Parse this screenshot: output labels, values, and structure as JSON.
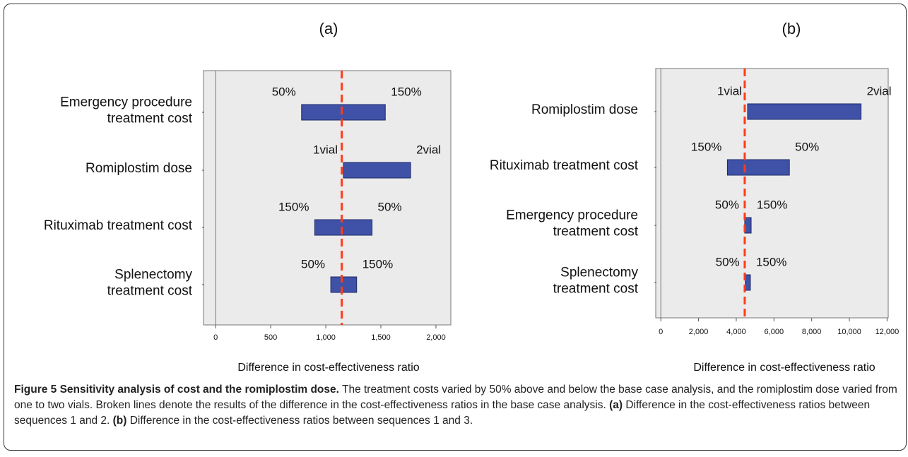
{
  "chart_data": [
    {
      "type": "tornado",
      "title": "(a)",
      "x_label": "Difference in cost-effectiveness ratio",
      "categories": [
        "Emergency procedure\ntreatment cost",
        "Romiplostim dose",
        "Rituximab treatment cost",
        "Splenectomy\ntreatment cost"
      ],
      "values": [
        [
          780,
          1540
        ],
        [
          1160,
          1770
        ],
        [
          900,
          1420
        ],
        [
          1045,
          1280
        ]
      ],
      "bar_labels": [
        [
          "50%",
          "150%"
        ],
        [
          "1vial",
          "2vial"
        ],
        [
          "150%",
          "50%"
        ],
        [
          "50%",
          "150%"
        ]
      ],
      "color": "#3f52a8",
      "reference_value": 1145,
      "reference_color": "#ff3b1a",
      "xlim": [
        -110,
        2135
      ],
      "xticks": [
        0,
        500,
        {
          "value": 1000,
          "label": "1,000"
        },
        {
          "value": 1500,
          "label": "1,500"
        },
        {
          "value": 2000,
          "label": "2,000"
        }
      ]
    },
    {
      "type": "tornado",
      "title": "(b)",
      "x_label": "Difference in cost-effectiveness ratio",
      "categories": [
        "Romiplostim dose",
        "Rituximab treatment cost",
        "Emergency procedure\ntreatment cost",
        "Splenectomy\ntreatment cost"
      ],
      "values": [
        [
          4600,
          10620
        ],
        [
          3530,
          6820
        ],
        [
          4450,
          4790
        ],
        [
          4480,
          4750
        ]
      ],
      "bar_labels": [
        [
          "1vial",
          "2vial"
        ],
        [
          "150%",
          "50%"
        ],
        [
          "50%",
          "150%"
        ],
        [
          "50%",
          "150%"
        ]
      ],
      "color": "#3f52a8",
      "reference_value": 4450,
      "reference_color": "#ff3b1a",
      "xlim": [
        -270,
        12060
      ],
      "xticks": [
        0,
        {
          "value": 2000,
          "label": "2,000"
        },
        {
          "value": 4000,
          "label": "4,000"
        },
        {
          "value": 6000,
          "label": "6,000"
        },
        {
          "value": 8000,
          "label": "8,000"
        },
        {
          "value": 10000,
          "label": "10,000"
        },
        {
          "value": 12000,
          "label": "12,000"
        }
      ]
    }
  ],
  "caption": {
    "title": "Figure 5 Sensitivity analysis of cost and the romiplostim dose.",
    "body": "The treatment costs varied by 50% above and below the base case analysis, and the romiplostim dose varied from one to two vials. Broken lines denote the results of the difference in the cost-effectiveness ratios in the base case analysis.",
    "part_a_label": "(a)",
    "part_a": "Difference in the cost-effectiveness ratios between sequences 1 and 2.",
    "part_b_label": "(b)",
    "part_b": "Difference in the cost-effectiveness ratios between sequences 1 and 3."
  }
}
